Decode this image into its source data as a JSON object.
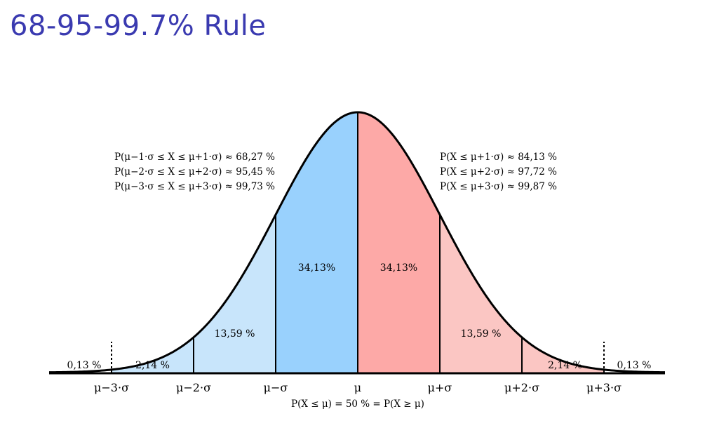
{
  "slide": {
    "title": "68-95-99.7% Rule"
  },
  "colors": {
    "title": "#3a3ab0",
    "left_dark": "#99d1fd",
    "left_light": "#c8e5fb",
    "right_dark": "#fda9a7",
    "right_light": "#fbc6c3",
    "curve": "#000000"
  },
  "chart_data": {
    "type": "area",
    "distribution": "normal",
    "x_ticks": [
      "μ−3·σ",
      "μ−2·σ",
      "μ−σ",
      "μ",
      "μ+σ",
      "μ+2·σ",
      "μ+3·σ"
    ],
    "x_tick_values": [
      -3,
      -2,
      -1,
      0,
      1,
      2,
      3
    ],
    "xlim": [
      -3.8,
      3.8
    ],
    "regions": [
      {
        "from": -3,
        "to": -2,
        "label": "2,14 %",
        "side": "left"
      },
      {
        "from": -2,
        "to": -1,
        "label": "13,59 %",
        "side": "left"
      },
      {
        "from": -1,
        "to": 0,
        "label": "34,13%",
        "side": "left"
      },
      {
        "from": 0,
        "to": 1,
        "label": "34,13%",
        "side": "right"
      },
      {
        "from": 1,
        "to": 2,
        "label": "13,59 %",
        "side": "right"
      },
      {
        "from": 2,
        "to": 3,
        "label": "2,14 %",
        "side": "right"
      }
    ],
    "tail_labels": [
      "0,13 %",
      "0,13 %"
    ],
    "left_annotations": [
      "P(μ−1·σ ≤ X ≤ μ+1·σ) ≈ 68,27 %",
      "P(μ−2·σ ≤ X ≤ μ+2·σ) ≈ 95,45 %",
      "P(μ−3·σ ≤ X ≤ μ+3·σ) ≈ 99,73 %"
    ],
    "right_annotations": [
      "P(X ≤ μ+1·σ) ≈ 84,13 %",
      "P(X ≤ μ+2·σ) ≈ 97,72 %",
      "P(X ≤ μ+3·σ) ≈ 99,87 %"
    ],
    "bottom_caption": "P(X ≤ μ) = 50 % = P(X ≥ μ)"
  }
}
